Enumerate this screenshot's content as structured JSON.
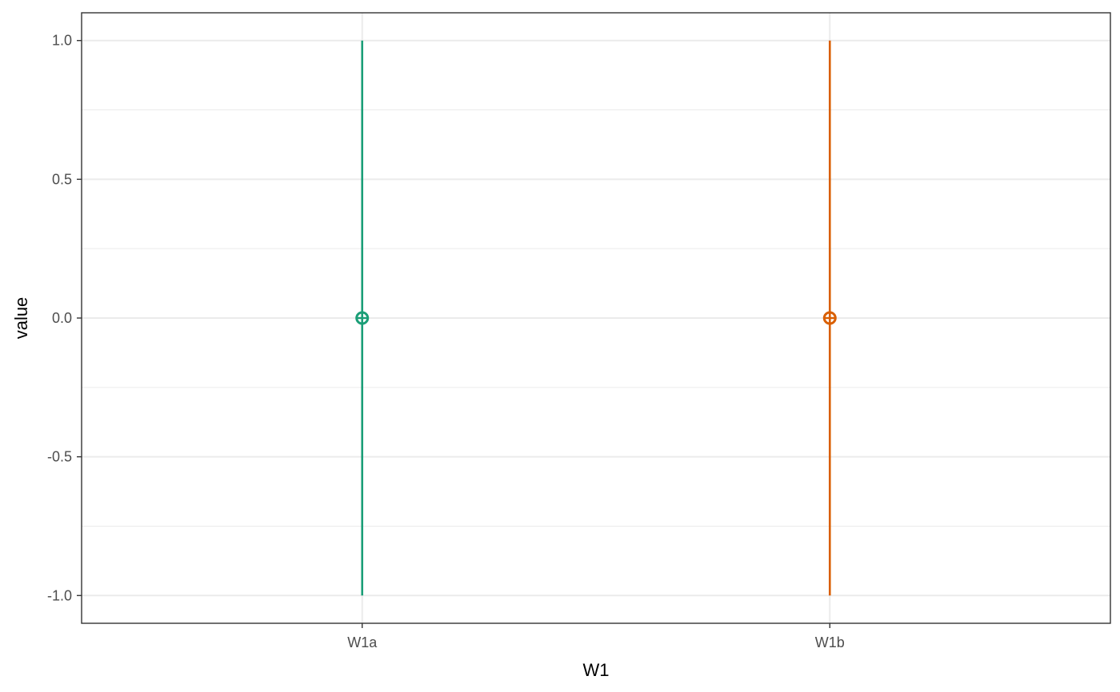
{
  "chart_data": {
    "type": "errorbar",
    "xlabel": "W1",
    "ylabel": "value",
    "categories": [
      "W1a",
      "W1b"
    ],
    "ylim": [
      -1.1,
      1.1
    ],
    "yticks": [
      -1.0,
      -0.5,
      0.0,
      0.5,
      1.0
    ],
    "ytick_labels": [
      "-1.0",
      "-0.5",
      "0.0",
      "0.5",
      "1.0"
    ],
    "grid": true,
    "legend": "none",
    "points": [
      {
        "category": "W1a",
        "y": 0.0,
        "ymin": -1.0,
        "ymax": 1.0,
        "color": "#1b9e77",
        "marker": "circle-plus"
      },
      {
        "category": "W1b",
        "y": 0.0,
        "ymin": -1.0,
        "ymax": 1.0,
        "color": "#d95f02",
        "marker": "circle-plus"
      }
    ]
  },
  "colors": {
    "panel_border": "#333333",
    "grid": "#ebebeb"
  }
}
